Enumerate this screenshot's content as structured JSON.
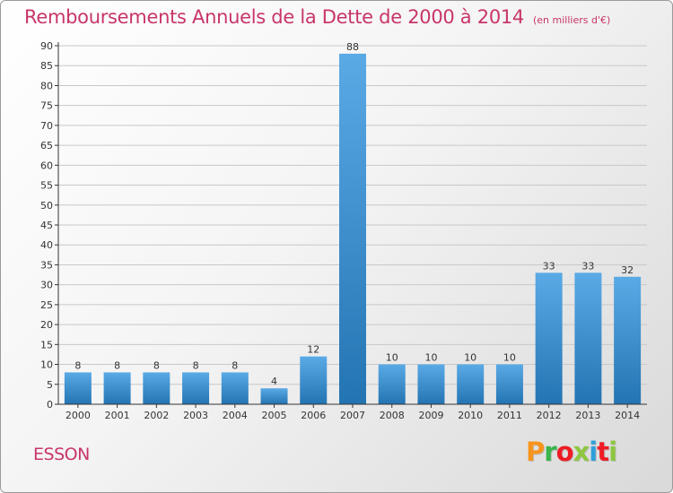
{
  "header": {
    "title": "Remboursements Annuels de la Dette de 2000 à 2014",
    "unit": "(en milliers d'€)"
  },
  "footer": {
    "commune": "ESSON",
    "brand": "Proxiti",
    "brand_colors": [
      "#f7941d",
      "#39b54a",
      "#ee1c25",
      "#8dc63f",
      "#2e9fd9",
      "#ee1c25",
      "#8dc63f"
    ]
  },
  "colors": {
    "accent": "#c8356a",
    "bar": "#4d9fdd",
    "bar_dark": "#2676b3",
    "axis": "#333333",
    "grid": "#c8c8c8"
  },
  "chart_data": {
    "type": "bar",
    "title": "Remboursements Annuels de la Dette de 2000 à 2014",
    "subtitle": "(en milliers d'€)",
    "categories": [
      "2000",
      "2001",
      "2002",
      "2003",
      "2004",
      "2005",
      "2006",
      "2007",
      "2008",
      "2009",
      "2010",
      "2011",
      "2012",
      "2013",
      "2014"
    ],
    "values": [
      8,
      8,
      8,
      8,
      8,
      4,
      12,
      88,
      10,
      10,
      10,
      10,
      33,
      33,
      32
    ],
    "ylim": [
      0,
      90
    ],
    "yticks": [
      0,
      5,
      10,
      15,
      20,
      25,
      30,
      35,
      40,
      45,
      50,
      55,
      60,
      65,
      70,
      75,
      80,
      85,
      90
    ],
    "xlabel": "",
    "ylabel": "",
    "grid": true,
    "data_labels": true
  }
}
